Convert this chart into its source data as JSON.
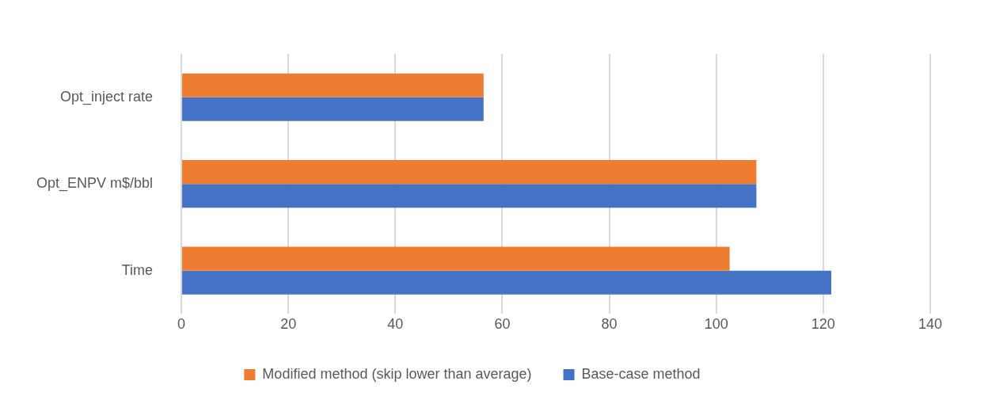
{
  "chart_data": {
    "type": "bar",
    "orientation": "horizontal",
    "categories": [
      "Opt_inject rate",
      "Opt_ENPV m$/bbl",
      "Time"
    ],
    "series": [
      {
        "name": "Modified method (skip lower than average)",
        "color": "#ed7d31",
        "values": [
          56.5,
          107.5,
          102.5
        ]
      },
      {
        "name": "Base-case method",
        "color": "#4472c4",
        "values": [
          56.5,
          107.5,
          121.5
        ]
      }
    ],
    "xlim": [
      0,
      140
    ],
    "xticks": [
      0,
      20,
      40,
      60,
      80,
      100,
      120,
      140
    ],
    "grid": "x",
    "legend": "bottom"
  }
}
